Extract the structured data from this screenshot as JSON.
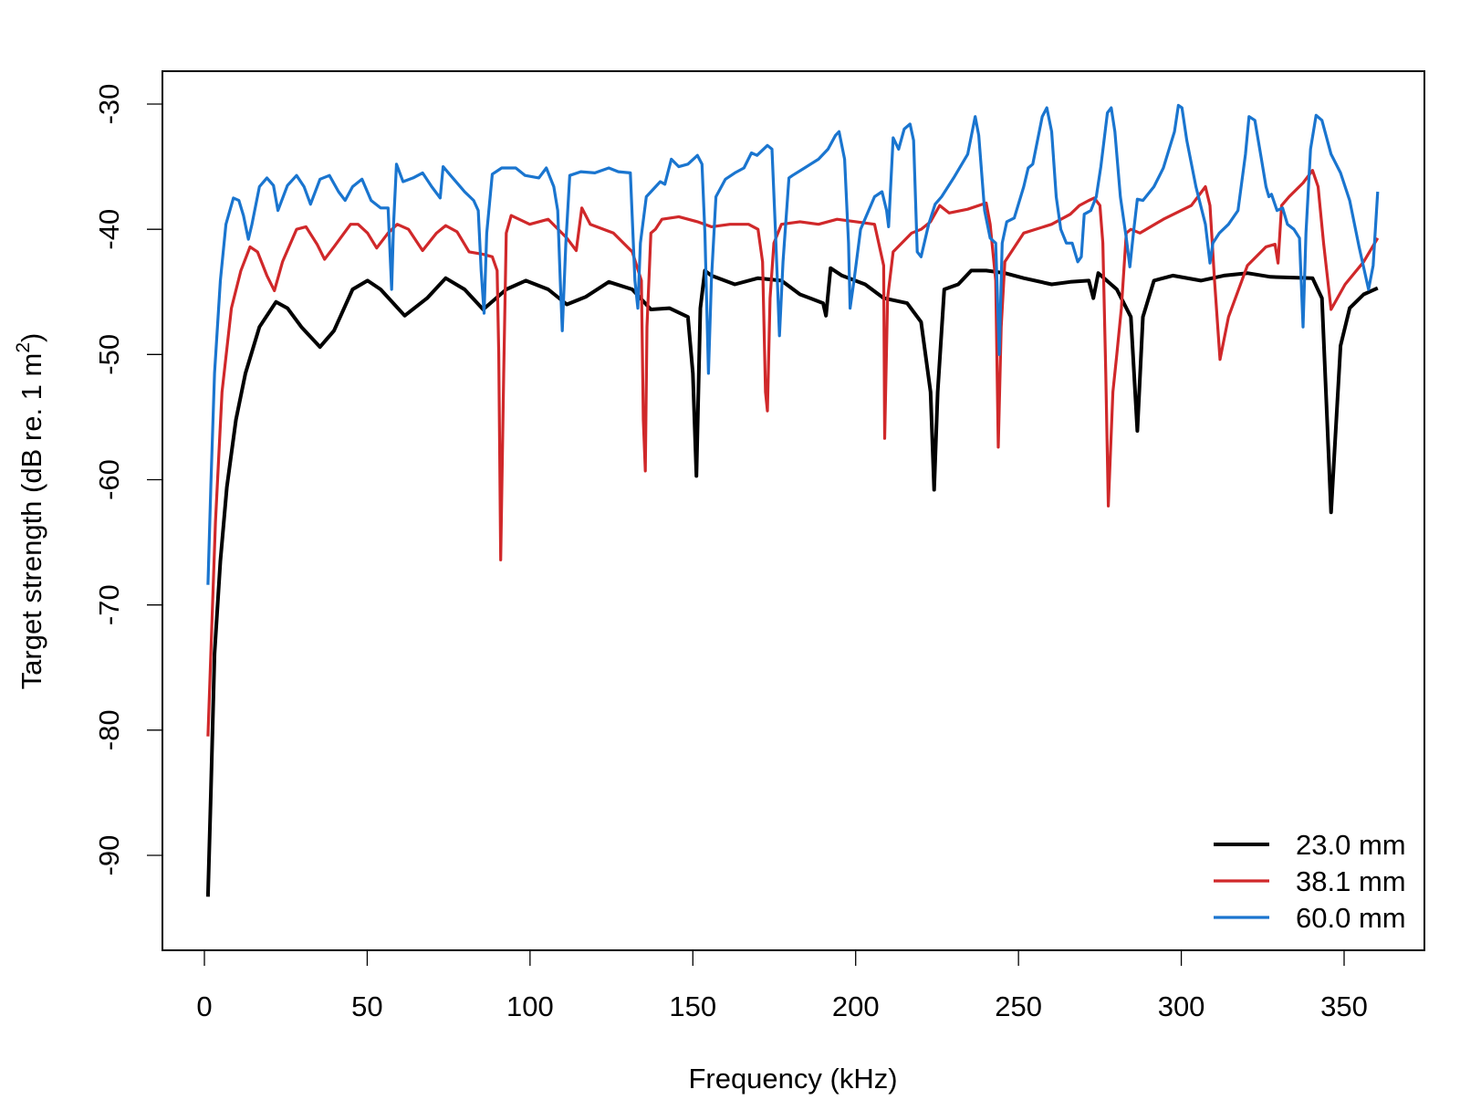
{
  "chart_data": {
    "type": "line",
    "title": "",
    "xlabel": "Frequency (kHz)",
    "ylabel": "Target strength (dB re. 1 m",
    "ylabel_superscript": "2",
    "ylabel_suffix": ")",
    "xlim": [
      -13,
      375
    ],
    "ylim": [
      -97.5,
      -27.3
    ],
    "xticks": [
      0,
      50,
      100,
      150,
      200,
      250,
      300,
      350
    ],
    "yticks": [
      -30,
      -40,
      -50,
      -60,
      -70,
      -80,
      -90
    ],
    "grid": false,
    "legend_position": "bottom-right",
    "series": [
      {
        "name": "23.0 mm",
        "color": "#000000",
        "x": [
          1.1,
          2.0,
          3.1,
          4.9,
          6.9,
          9.7,
          12.6,
          16.9,
          22.0,
          25.5,
          29.8,
          35.5,
          39.8,
          45.5,
          50.1,
          54.1,
          61.5,
          68.4,
          74.1,
          79.9,
          85.6,
          92.7,
          98.7,
          105.6,
          111.3,
          117.1,
          124.2,
          131.4,
          137.1,
          142.8,
          148.5,
          150.0,
          151.1,
          152.3,
          153.7,
          155.7,
          162.9,
          170.0,
          177.2,
          182.9,
          190.0,
          190.9,
          192.3,
          195.8,
          202.9,
          208.6,
          215.8,
          220.1,
          223.0,
          224.1,
          225.2,
          227.2,
          231.5,
          235.5,
          240.1,
          245.8,
          251.6,
          260.2,
          265.9,
          271.6,
          273.0,
          274.5,
          280.2,
          284.5,
          286.5,
          288.2,
          291.6,
          297.4,
          306.0,
          313.1,
          320.3,
          327.4,
          340.3,
          343.2,
          346.0,
          348.9,
          351.7,
          356.0,
          360.3
        ],
        "y": [
          -93.3,
          -85.0,
          -73.9,
          -66.5,
          -60.6,
          -55.2,
          -51.5,
          -47.8,
          -45.8,
          -46.3,
          -47.8,
          -49.4,
          -48.1,
          -44.8,
          -44.1,
          -44.8,
          -46.9,
          -45.5,
          -43.9,
          -44.8,
          -46.4,
          -44.8,
          -44.1,
          -44.8,
          -46.0,
          -45.4,
          -44.2,
          -44.8,
          -46.4,
          -46.3,
          -47.0,
          -51.5,
          -59.7,
          -46.3,
          -43.3,
          -43.7,
          -44.4,
          -43.9,
          -44.1,
          -45.2,
          -45.9,
          -46.9,
          -43.1,
          -43.7,
          -44.4,
          -45.5,
          -45.9,
          -47.4,
          -53.0,
          -60.8,
          -53.0,
          -44.8,
          -44.4,
          -43.3,
          -43.3,
          -43.5,
          -43.9,
          -44.4,
          -44.2,
          -44.1,
          -45.5,
          -43.5,
          -44.8,
          -47.0,
          -56.1,
          -47.0,
          -44.1,
          -43.7,
          -44.1,
          -43.7,
          -43.5,
          -43.8,
          -43.9,
          -45.5,
          -62.6,
          -49.3,
          -46.3,
          -45.2,
          -44.7
        ]
      },
      {
        "name": "38.1 mm",
        "color": "#d0282a",
        "x": [
          1.1,
          2.0,
          3.4,
          5.4,
          8.3,
          11.2,
          14.0,
          16.3,
          19.2,
          21.5,
          24.0,
          28.3,
          31.2,
          34.6,
          36.9,
          39.8,
          44.9,
          47.2,
          50.1,
          52.9,
          56.4,
          59.2,
          62.7,
          67.0,
          71.3,
          74.1,
          77.6,
          81.3,
          85.6,
          88.4,
          89.9,
          90.4,
          91.0,
          91.9,
          92.7,
          94.2,
          99.9,
          105.6,
          111.3,
          114.2,
          115.9,
          118.5,
          125.6,
          131.4,
          134.2,
          134.8,
          135.4,
          135.9,
          137.1,
          138.5,
          140.5,
          145.7,
          151.4,
          155.7,
          161.4,
          167.1,
          170.0,
          171.4,
          172.3,
          172.9,
          173.7,
          174.9,
          177.2,
          182.9,
          188.6,
          194.3,
          200.1,
          205.8,
          208.6,
          208.9,
          209.8,
          211.5,
          217.2,
          220.1,
          223.0,
          225.8,
          228.7,
          234.4,
          240.1,
          241.3,
          243.0,
          243.8,
          244.7,
          245.8,
          251.6,
          260.2,
          265.9,
          268.7,
          271.6,
          273.3,
          275.0,
          275.9,
          276.8,
          277.6,
          279.0,
          280.2,
          281.6,
          283.1,
          284.5,
          287.3,
          294.5,
          303.1,
          307.4,
          308.8,
          310.2,
          311.9,
          314.5,
          320.3,
          326.0,
          328.8,
          329.7,
          330.8,
          333.1,
          337.4,
          340.3,
          342.0,
          343.7,
          346.0,
          350.3,
          356.0,
          360.3
        ],
        "y": [
          -80.5,
          -73.8,
          -63.4,
          -53.0,
          -46.3,
          -43.3,
          -41.4,
          -41.8,
          -43.7,
          -44.9,
          -42.6,
          -40.0,
          -39.8,
          -41.2,
          -42.4,
          -41.4,
          -39.6,
          -39.6,
          -40.3,
          -41.5,
          -40.3,
          -39.6,
          -40.0,
          -41.7,
          -40.3,
          -39.7,
          -40.2,
          -41.8,
          -42.0,
          -42.2,
          -43.3,
          -50.0,
          -66.4,
          -51.5,
          -40.3,
          -38.9,
          -39.6,
          -39.2,
          -40.7,
          -41.7,
          -38.3,
          -39.6,
          -40.3,
          -41.8,
          -44.1,
          -55.2,
          -59.3,
          -47.8,
          -40.3,
          -40.0,
          -39.2,
          -39.0,
          -39.4,
          -39.8,
          -39.6,
          -39.6,
          -40.0,
          -42.6,
          -53.0,
          -54.5,
          -45.5,
          -41.1,
          -39.6,
          -39.4,
          -39.6,
          -39.2,
          -39.4,
          -39.6,
          -42.9,
          -56.7,
          -45.5,
          -41.8,
          -40.3,
          -40.0,
          -39.4,
          -38.1,
          -38.7,
          -38.4,
          -37.9,
          -39.6,
          -44.1,
          -57.4,
          -47.8,
          -42.6,
          -40.3,
          -39.6,
          -38.8,
          -38.1,
          -37.7,
          -37.5,
          -38.1,
          -41.1,
          -51.5,
          -62.1,
          -53.0,
          -50.0,
          -46.3,
          -40.3,
          -40.0,
          -40.3,
          -39.2,
          -38.1,
          -36.6,
          -38.1,
          -44.1,
          -50.4,
          -47.0,
          -42.9,
          -41.4,
          -41.2,
          -42.7,
          -38.1,
          -37.4,
          -36.3,
          -35.3,
          -36.6,
          -41.1,
          -46.4,
          -44.4,
          -42.6,
          -40.7
        ]
      },
      {
        "name": "60.0 mm",
        "color": "#1a75cf",
        "x": [
          1.1,
          2.0,
          3.1,
          4.9,
          6.6,
          8.9,
          10.6,
          12.0,
          13.5,
          14.6,
          16.9,
          19.2,
          21.2,
          22.6,
          25.5,
          28.3,
          30.6,
          32.6,
          35.5,
          38.4,
          41.2,
          43.2,
          45.5,
          48.4,
          51.2,
          54.1,
          56.4,
          57.5,
          58.1,
          59.0,
          61.0,
          64.1,
          67.0,
          69.8,
          72.4,
          73.3,
          75.6,
          79.9,
          82.7,
          84.1,
          85.0,
          85.9,
          86.7,
          88.4,
          91.3,
          95.6,
          98.5,
          102.7,
          105.0,
          107.3,
          108.5,
          109.3,
          109.9,
          111.0,
          112.2,
          115.6,
          119.9,
          124.2,
          127.1,
          130.8,
          132.2,
          133.1,
          133.9,
          135.7,
          140.0,
          141.4,
          143.4,
          145.7,
          148.5,
          151.4,
          152.8,
          153.7,
          154.8,
          155.7,
          157.1,
          160.0,
          162.9,
          165.7,
          168.0,
          169.7,
          172.9,
          174.3,
          175.4,
          176.6,
          177.7,
          179.5,
          180.6,
          184.3,
          188.6,
          191.5,
          193.8,
          194.9,
          196.6,
          197.8,
          198.3,
          199.5,
          201.5,
          205.8,
          208.1,
          209.5,
          210.1,
          211.5,
          213.2,
          214.9,
          216.7,
          217.8,
          218.9,
          220.1,
          222.4,
          224.4,
          226.4,
          230.1,
          234.4,
          236.7,
          237.8,
          239.6,
          241.3,
          243.0,
          244.1,
          245.0,
          246.4,
          248.7,
          251.6,
          253.0,
          254.4,
          257.3,
          258.7,
          260.2,
          261.6,
          263.0,
          264.7,
          266.5,
          268.2,
          269.3,
          270.2,
          272.2,
          273.9,
          275.3,
          277.3,
          278.5,
          279.6,
          281.3,
          283.1,
          284.2,
          285.3,
          286.5,
          288.2,
          291.6,
          294.5,
          297.9,
          299.1,
          300.2,
          301.7,
          304.5,
          307.4,
          308.8,
          309.7,
          311.7,
          314.5,
          317.4,
          319.7,
          320.8,
          322.6,
          324.6,
          326.0,
          326.9,
          327.7,
          329.4,
          331.1,
          332.6,
          334.6,
          336.3,
          337.4,
          338.3,
          339.7,
          341.4,
          343.2,
          346.0,
          348.9,
          351.7,
          354.6,
          357.5,
          358.9,
          360.3
        ],
        "y": [
          -68.4,
          -60.4,
          -51.5,
          -44.1,
          -39.6,
          -37.5,
          -37.7,
          -38.9,
          -40.8,
          -39.6,
          -36.6,
          -35.9,
          -36.5,
          -38.5,
          -36.5,
          -35.7,
          -36.6,
          -38.0,
          -36.0,
          -35.7,
          -37.0,
          -37.7,
          -36.6,
          -36.0,
          -37.7,
          -38.3,
          -38.3,
          -44.8,
          -39.6,
          -34.8,
          -36.2,
          -35.9,
          -35.5,
          -36.6,
          -37.5,
          -35.0,
          -35.7,
          -37.0,
          -37.7,
          -38.5,
          -43.3,
          -46.7,
          -40.3,
          -35.6,
          -35.1,
          -35.1,
          -35.7,
          -35.9,
          -35.1,
          -36.6,
          -38.5,
          -44.1,
          -48.1,
          -41.1,
          -35.7,
          -35.4,
          -35.5,
          -35.1,
          -35.4,
          -35.5,
          -44.1,
          -46.3,
          -41.1,
          -37.4,
          -36.2,
          -36.4,
          -34.4,
          -35.0,
          -34.8,
          -34.1,
          -34.8,
          -40.3,
          -51.5,
          -44.1,
          -37.4,
          -36.0,
          -35.5,
          -35.1,
          -33.9,
          -34.1,
          -33.3,
          -33.6,
          -40.3,
          -48.5,
          -42.6,
          -35.9,
          -35.7,
          -35.1,
          -34.4,
          -33.6,
          -32.5,
          -32.2,
          -34.4,
          -41.1,
          -46.3,
          -44.1,
          -40.0,
          -37.4,
          -37.0,
          -38.5,
          -39.8,
          -32.7,
          -33.6,
          -32.0,
          -31.6,
          -32.9,
          -41.8,
          -42.2,
          -39.6,
          -38.0,
          -37.4,
          -35.9,
          -34.0,
          -31.0,
          -32.5,
          -38.5,
          -40.7,
          -41.1,
          -50.0,
          -41.1,
          -39.4,
          -39.1,
          -36.6,
          -35.1,
          -34.8,
          -31.0,
          -30.3,
          -32.2,
          -37.4,
          -40.0,
          -41.1,
          -41.1,
          -42.6,
          -42.2,
          -38.8,
          -38.5,
          -37.4,
          -35.0,
          -30.7,
          -30.3,
          -32.2,
          -37.4,
          -40.7,
          -43.0,
          -40.3,
          -37.6,
          -37.7,
          -36.6,
          -35.1,
          -32.2,
          -30.1,
          -30.3,
          -32.9,
          -36.6,
          -39.6,
          -42.7,
          -41.1,
          -40.3,
          -39.6,
          -38.5,
          -34.0,
          -31.0,
          -31.3,
          -34.4,
          -36.6,
          -37.4,
          -37.2,
          -38.5,
          -38.3,
          -39.6,
          -40.0,
          -40.7,
          -47.8,
          -40.3,
          -33.6,
          -30.9,
          -31.3,
          -34.0,
          -35.5,
          -37.7,
          -41.4,
          -44.8,
          -42.9,
          -37.0
        ]
      }
    ]
  }
}
